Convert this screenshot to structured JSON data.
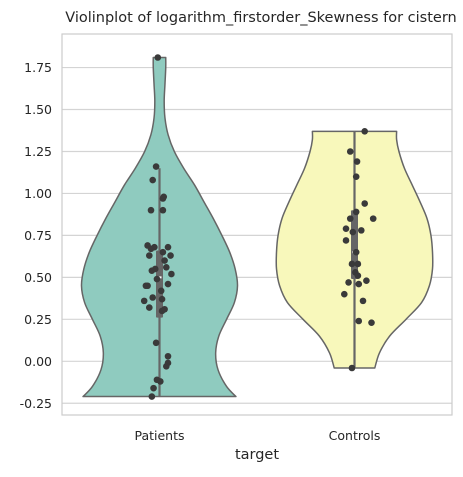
{
  "chart_data": {
    "type": "violin",
    "title": "Violinplot of logarithm_firstorder_Skewness for cistern",
    "xlabel": "target",
    "ylabel": "",
    "categories": [
      "Patients",
      "Controls"
    ],
    "ylim": [
      -0.32,
      1.95
    ],
    "yticks": [
      -0.25,
      0.0,
      0.25,
      0.5,
      0.75,
      1.0,
      1.25,
      1.5,
      1.75
    ],
    "ytick_labels": [
      "-0.25",
      "0.00",
      "0.25",
      "0.50",
      "0.75",
      "1.00",
      "1.25",
      "1.50",
      "1.75"
    ],
    "grid": true,
    "colors": {
      "Patients": "#8fcbbf",
      "Controls": "#f8f8bb",
      "outline": "#666666",
      "points": "#3a3a3a",
      "grid": "#d4d4d4",
      "frame": "#cccccc",
      "median": "#ffffff",
      "box": "#666666"
    },
    "violins": [
      {
        "category": "Patients",
        "min": -0.21,
        "max": 1.81,
        "q1": 0.26,
        "median": 0.5,
        "q3": 0.66,
        "whisker_low": -0.21,
        "whisker_high": 1.15,
        "density_profile": [
          [
            -0.21,
            0.98
          ],
          [
            -0.15,
            0.86
          ],
          [
            -0.05,
            0.75
          ],
          [
            0.05,
            0.72
          ],
          [
            0.15,
            0.76
          ],
          [
            0.25,
            0.86
          ],
          [
            0.35,
            0.96
          ],
          [
            0.45,
            1.0
          ],
          [
            0.55,
            0.97
          ],
          [
            0.65,
            0.9
          ],
          [
            0.75,
            0.8
          ],
          [
            0.85,
            0.69
          ],
          [
            0.95,
            0.57
          ],
          [
            1.05,
            0.45
          ],
          [
            1.15,
            0.31
          ],
          [
            1.25,
            0.19
          ],
          [
            1.35,
            0.11
          ],
          [
            1.45,
            0.07
          ],
          [
            1.55,
            0.06
          ],
          [
            1.65,
            0.07
          ],
          [
            1.75,
            0.08
          ],
          [
            1.81,
            0.08
          ]
        ],
        "points": [
          [
            -0.02,
            1.81
          ],
          [
            -0.04,
            1.16
          ],
          [
            -0.08,
            1.08
          ],
          [
            0.05,
            0.98
          ],
          [
            0.04,
            0.97
          ],
          [
            -0.1,
            0.9
          ],
          [
            0.04,
            0.9
          ],
          [
            -0.14,
            0.69
          ],
          [
            -0.06,
            0.68
          ],
          [
            -0.1,
            0.67
          ],
          [
            0.1,
            0.68
          ],
          [
            0.04,
            0.65
          ],
          [
            0.13,
            0.63
          ],
          [
            -0.12,
            0.63
          ],
          [
            0.06,
            0.6
          ],
          [
            0.08,
            0.56
          ],
          [
            -0.05,
            0.55
          ],
          [
            -0.09,
            0.54
          ],
          [
            0.14,
            0.52
          ],
          [
            -0.03,
            0.49
          ],
          [
            0.1,
            0.46
          ],
          [
            -0.16,
            0.45
          ],
          [
            -0.14,
            0.45
          ],
          [
            0.02,
            0.42
          ],
          [
            -0.08,
            0.38
          ],
          [
            0.03,
            0.37
          ],
          [
            -0.18,
            0.36
          ],
          [
            -0.12,
            0.32
          ],
          [
            0.06,
            0.31
          ],
          [
            0.03,
            0.3
          ],
          [
            -0.04,
            0.11
          ],
          [
            0.1,
            0.03
          ],
          [
            0.1,
            -0.01
          ],
          [
            0.08,
            -0.03
          ],
          [
            -0.03,
            -0.11
          ],
          [
            0.01,
            -0.12
          ],
          [
            -0.07,
            -0.16
          ],
          [
            -0.09,
            -0.21
          ]
        ]
      },
      {
        "category": "Controls",
        "min": -0.04,
        "max": 1.37,
        "q1": 0.49,
        "median": 0.65,
        "q3": 0.9,
        "whisker_low": -0.04,
        "whisker_high": 1.37,
        "density_profile": [
          [
            -0.04,
            0.26
          ],
          [
            0.05,
            0.32
          ],
          [
            0.15,
            0.45
          ],
          [
            0.25,
            0.66
          ],
          [
            0.35,
            0.86
          ],
          [
            0.45,
            0.96
          ],
          [
            0.55,
            1.0
          ],
          [
            0.65,
            1.0
          ],
          [
            0.75,
            0.98
          ],
          [
            0.85,
            0.93
          ],
          [
            0.95,
            0.84
          ],
          [
            1.05,
            0.74
          ],
          [
            1.15,
            0.64
          ],
          [
            1.25,
            0.57
          ],
          [
            1.32,
            0.54
          ],
          [
            1.37,
            0.54
          ]
        ],
        "points": [
          [
            0.12,
            1.37
          ],
          [
            -0.05,
            1.25
          ],
          [
            0.03,
            1.19
          ],
          [
            0.02,
            1.1
          ],
          [
            0.12,
            0.94
          ],
          [
            0.02,
            0.89
          ],
          [
            -0.05,
            0.85
          ],
          [
            0.22,
            0.85
          ],
          [
            -0.1,
            0.79
          ],
          [
            0.08,
            0.78
          ],
          [
            -0.02,
            0.77
          ],
          [
            -0.1,
            0.72
          ],
          [
            0.02,
            0.65
          ],
          [
            0.04,
            0.58
          ],
          [
            -0.03,
            0.58
          ],
          [
            0.01,
            0.53
          ],
          [
            0.04,
            0.51
          ],
          [
            0.14,
            0.48
          ],
          [
            -0.07,
            0.47
          ],
          [
            0.05,
            0.46
          ],
          [
            -0.12,
            0.4
          ],
          [
            0.1,
            0.36
          ],
          [
            0.05,
            0.24
          ],
          [
            0.2,
            0.23
          ],
          [
            -0.03,
            -0.04
          ]
        ]
      }
    ]
  }
}
